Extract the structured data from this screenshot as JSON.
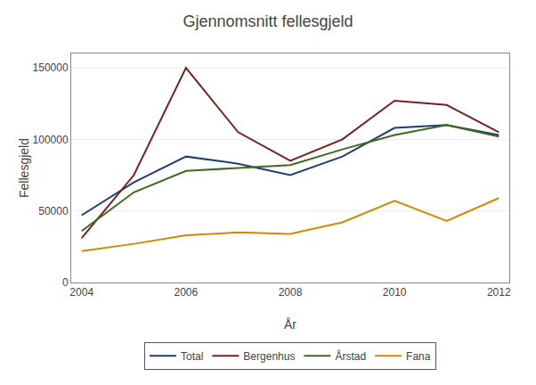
{
  "chart_data": {
    "type": "line",
    "title": "Gjennomsnitt fellesgjeld",
    "xlabel": "År",
    "ylabel": "Fellesgjeld",
    "x": [
      2004,
      2005,
      2006,
      2007,
      2008,
      2009,
      2010,
      2011,
      2012
    ],
    "series": [
      {
        "name": "Total",
        "color": "#1f3f6e",
        "values": [
          47000,
          70000,
          88000,
          83000,
          75000,
          88000,
          108000,
          110000,
          103000
        ]
      },
      {
        "name": "Bergenhus",
        "color": "#7b2020",
        "values": [
          31000,
          75000,
          150000,
          105000,
          85000,
          100000,
          127000,
          124000,
          105000
        ]
      },
      {
        "name": "Årstad",
        "color": "#3d6b1e",
        "values": [
          36000,
          63000,
          78000,
          80000,
          82000,
          93000,
          103000,
          110000,
          102000
        ]
      },
      {
        "name": "Fana",
        "color": "#d48a00",
        "values": [
          22000,
          27000,
          33000,
          35000,
          34000,
          42000,
          57000,
          43000,
          59000
        ]
      }
    ],
    "xlim": [
      2003.8,
      2012.2
    ],
    "xticks": [
      2004,
      2006,
      2008,
      2010,
      2012
    ],
    "ylim": [
      0,
      160000
    ],
    "yticks": [
      0,
      50000,
      100000,
      150000
    ],
    "grid": "y",
    "legend": "bottom"
  }
}
